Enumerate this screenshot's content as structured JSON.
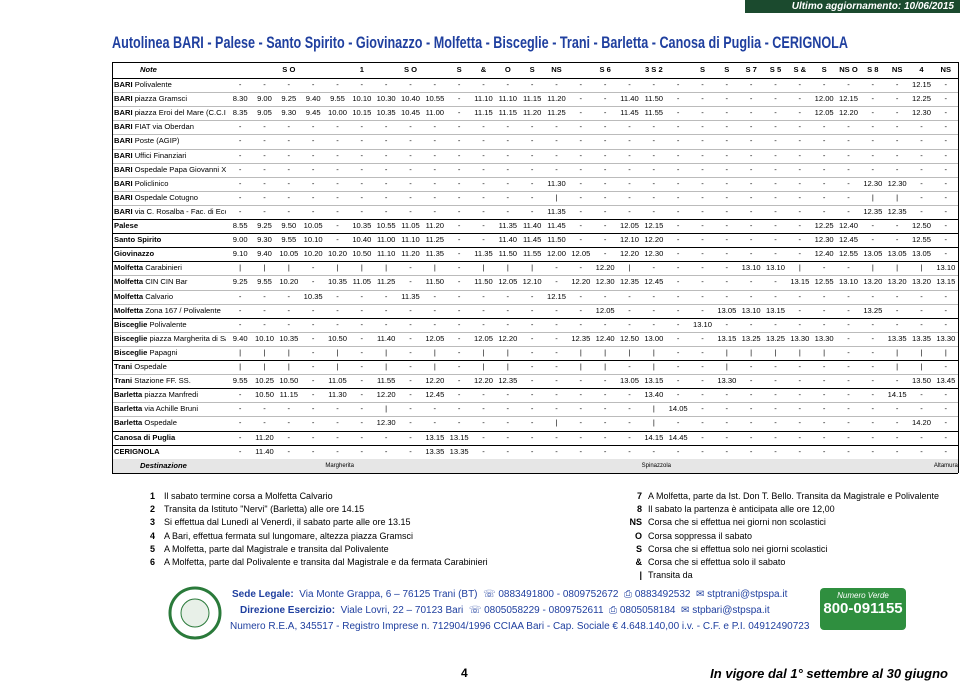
{
  "update": "Ultimo aggiornamento: 10/06/2015",
  "title": "Autolinea BARI - Palese - Santo Spirito - Giovinazzo - Molfetta - Bisceglie - Trani - Barletta - Canosa di Puglia - CERIGNOLA",
  "table": {
    "header_label": "Note",
    "header": [
      null,
      null,
      "S O",
      null,
      null,
      "1",
      null,
      "S O",
      null,
      "S",
      "&",
      "O",
      "S",
      "NS",
      null,
      "S 6",
      null,
      "3 S 2",
      null,
      "S",
      "S",
      "S 7",
      "S 5",
      "S &",
      "S",
      "NS O",
      "S 8",
      "NS",
      "4",
      "NS"
    ],
    "rows": [
      {
        "city": "BARI",
        "place": "Polivalente",
        "cells": [
          "-",
          "-",
          "-",
          "-",
          "-",
          "-",
          "-",
          "-",
          "-",
          "-",
          "-",
          "-",
          "-",
          "-",
          "-",
          "-",
          "-",
          "-",
          "-",
          "-",
          "-",
          "-",
          "-",
          "-",
          "-",
          "-",
          "-",
          "-",
          "12.15",
          "-"
        ]
      },
      {
        "city": "BARI",
        "place": "piazza Gramsci",
        "cells": [
          "8.30",
          "9.00",
          "9.25",
          "9.40",
          "9.55",
          "10.10",
          "10.30",
          "10.40",
          "10.55",
          "-",
          "11.10",
          "11.10",
          "11.15",
          "11.20",
          "-",
          "-",
          "11.40",
          "11.50",
          "-",
          "-",
          "-",
          "-",
          "-",
          "-",
          "12.00",
          "12.15",
          "-",
          "-",
          "12.25",
          "-"
        ]
      },
      {
        "city": "BARI",
        "place": "piazza Eroi del Mare (C.C.I.A.A.)",
        "cells": [
          "8.35",
          "9.05",
          "9.30",
          "9.45",
          "10.00",
          "10.15",
          "10.35",
          "10.45",
          "11.00",
          "-",
          "11.15",
          "11.15",
          "11.20",
          "11.25",
          "-",
          "-",
          "11.45",
          "11.55",
          "-",
          "-",
          "-",
          "-",
          "-",
          "-",
          "12.05",
          "12.20",
          "-",
          "-",
          "12.30",
          "-"
        ]
      },
      {
        "city": "BARI",
        "place": "FIAT via Oberdan",
        "cells": [
          "-",
          "-",
          "-",
          "-",
          "-",
          "-",
          "-",
          "-",
          "-",
          "-",
          "-",
          "-",
          "-",
          "-",
          "-",
          "-",
          "-",
          "-",
          "-",
          "-",
          "-",
          "-",
          "-",
          "-",
          "-",
          "-",
          "-",
          "-",
          "-",
          "-"
        ]
      },
      {
        "city": "BARI",
        "place": "Poste (AGIP)",
        "cells": [
          "-",
          "-",
          "-",
          "-",
          "-",
          "-",
          "-",
          "-",
          "-",
          "-",
          "-",
          "-",
          "-",
          "-",
          "-",
          "-",
          "-",
          "-",
          "-",
          "-",
          "-",
          "-",
          "-",
          "-",
          "-",
          "-",
          "-",
          "-",
          "-",
          "-"
        ]
      },
      {
        "city": "BARI",
        "place": "Uffici Finanziari",
        "cells": [
          "-",
          "-",
          "-",
          "-",
          "-",
          "-",
          "-",
          "-",
          "-",
          "-",
          "-",
          "-",
          "-",
          "-",
          "-",
          "-",
          "-",
          "-",
          "-",
          "-",
          "-",
          "-",
          "-",
          "-",
          "-",
          "-",
          "-",
          "-",
          "-",
          "-"
        ]
      },
      {
        "city": "BARI",
        "place": "Ospedale Papa Giovanni XXIII",
        "cells": [
          "-",
          "-",
          "-",
          "-",
          "-",
          "-",
          "-",
          "-",
          "-",
          "-",
          "-",
          "-",
          "-",
          "-",
          "-",
          "-",
          "-",
          "-",
          "-",
          "-",
          "-",
          "-",
          "-",
          "-",
          "-",
          "-",
          "-",
          "-",
          "-",
          "-"
        ]
      },
      {
        "city": "BARI",
        "place": "Policlinico",
        "cells": [
          "-",
          "-",
          "-",
          "-",
          "-",
          "-",
          "-",
          "-",
          "-",
          "-",
          "-",
          "-",
          "-",
          "11.30",
          "-",
          "-",
          "-",
          "-",
          "-",
          "-",
          "-",
          "-",
          "-",
          "-",
          "-",
          "-",
          "12.30",
          "12.30",
          "-",
          "-"
        ]
      },
      {
        "city": "BARI",
        "place": "Ospedale Cotugno",
        "cells": [
          "-",
          "-",
          "-",
          "-",
          "-",
          "-",
          "-",
          "-",
          "-",
          "-",
          "-",
          "-",
          "-",
          "|",
          "-",
          "-",
          "-",
          "-",
          "-",
          "-",
          "-",
          "-",
          "-",
          "-",
          "-",
          "-",
          "|",
          "|",
          "-",
          "-"
        ]
      },
      {
        "city": "BARI",
        "place": "via C. Rosalba - Fac. di Economia",
        "cells": [
          "-",
          "-",
          "-",
          "-",
          "-",
          "-",
          "-",
          "-",
          "-",
          "-",
          "-",
          "-",
          "-",
          "11.35",
          "-",
          "-",
          "-",
          "-",
          "-",
          "-",
          "-",
          "-",
          "-",
          "-",
          "-",
          "-",
          "12.35",
          "12.35",
          "-",
          "-"
        ]
      },
      {
        "city": "Palese",
        "cells": [
          "8.55",
          "9.25",
          "9.50",
          "10.05",
          "-",
          "10.35",
          "10.55",
          "11.05",
          "11.20",
          "-",
          "-",
          "11.35",
          "11.40",
          "11.45",
          "-",
          "-",
          "12.05",
          "12.15",
          "-",
          "-",
          "-",
          "-",
          "-",
          "-",
          "12.25",
          "12.40",
          "-",
          "-",
          "12.50",
          "-"
        ]
      },
      {
        "city": "Santo Spirito",
        "cells": [
          "9.00",
          "9.30",
          "9.55",
          "10.10",
          "-",
          "10.40",
          "11.00",
          "11.10",
          "11.25",
          "-",
          "-",
          "11.40",
          "11.45",
          "11.50",
          "-",
          "-",
          "12.10",
          "12.20",
          "-",
          "-",
          "-",
          "-",
          "-",
          "-",
          "12.30",
          "12.45",
          "-",
          "-",
          "12.55",
          "-"
        ]
      },
      {
        "city": "Giovinazzo",
        "cells": [
          "9.10",
          "9.40",
          "10.05",
          "10.20",
          "10.20",
          "10.50",
          "11.10",
          "11.20",
          "11.35",
          "-",
          "11.35",
          "11.50",
          "11.55",
          "12.00",
          "12.05",
          "-",
          "12.20",
          "12.30",
          "-",
          "-",
          "-",
          "-",
          "-",
          "-",
          "12.40",
          "12.55",
          "13.05",
          "13.05",
          "13.05",
          "-"
        ]
      },
      {
        "city": "Molfetta",
        "place": "Carabinieri",
        "cells": [
          "|",
          "|",
          "|",
          "-",
          "|",
          "|",
          "|",
          "-",
          "|",
          "-",
          "|",
          "|",
          "|",
          "-",
          "-",
          "12.20",
          "|",
          "-",
          "-",
          "-",
          "-",
          "13.10",
          "13.10",
          "|",
          "-",
          "-",
          "|",
          "|",
          "|",
          "13.10"
        ]
      },
      {
        "city": "Molfetta",
        "place": "CIN CIN Bar",
        "cells": [
          "9.25",
          "9.55",
          "10.20",
          "-",
          "10.35",
          "11.05",
          "11.25",
          "-",
          "11.50",
          "-",
          "11.50",
          "12.05",
          "12.10",
          "-",
          "12.20",
          "12.30",
          "12.35",
          "12.45",
          "-",
          "-",
          "-",
          "-",
          "-",
          "13.15",
          "12.55",
          "13.10",
          "13.20",
          "13.20",
          "13.20",
          "13.15"
        ]
      },
      {
        "city": "Molfetta",
        "place": "Calvario",
        "cells": [
          "-",
          "-",
          "-",
          "10.35",
          "-",
          "-",
          "-",
          "11.35",
          "-",
          "-",
          "-",
          "-",
          "-",
          "12.15",
          "-",
          "-",
          "-",
          "-",
          "-",
          "-",
          "-",
          "-",
          "-",
          "-",
          "-",
          "-",
          "-",
          "-",
          "-",
          "-"
        ]
      },
      {
        "city": "Molfetta",
        "place": "Zona 167 / Polivalente",
        "cells": [
          "-",
          "-",
          "-",
          "-",
          "-",
          "-",
          "-",
          "-",
          "-",
          "-",
          "-",
          "-",
          "-",
          "-",
          "-",
          "12.05",
          "-",
          "-",
          "-",
          "-",
          "13.05",
          "13.10",
          "13.15",
          "-",
          "-",
          "-",
          "13.25",
          "-",
          "-",
          "-"
        ]
      },
      {
        "city": "Bisceglie",
        "place": "Polivalente",
        "cells": [
          "-",
          "-",
          "-",
          "-",
          "-",
          "-",
          "-",
          "-",
          "-",
          "-",
          "-",
          "-",
          "-",
          "-",
          "-",
          "-",
          "-",
          "-",
          "-",
          "13.10",
          "-",
          "-",
          "-",
          "-",
          "-",
          "-",
          "-",
          "-",
          "-",
          "-"
        ]
      },
      {
        "city": "Bisceglie",
        "place": "piazza Margherita di Savoia",
        "cells": [
          "9.40",
          "10.10",
          "10.35",
          "-",
          "10.50",
          "-",
          "11.40",
          "-",
          "12.05",
          "-",
          "12.05",
          "12.20",
          "-",
          "-",
          "12.35",
          "12.40",
          "12.50",
          "13.00",
          "-",
          "-",
          "13.15",
          "13.25",
          "13.25",
          "13.30",
          "13.30",
          "-",
          "-",
          "13.35",
          "13.35",
          "13.30"
        ]
      },
      {
        "city": "Bisceglie",
        "place": "Papagni",
        "cells": [
          "|",
          "|",
          "|",
          "-",
          "|",
          "-",
          "|",
          "-",
          "|",
          "-",
          "|",
          "|",
          "-",
          "-",
          "|",
          "|",
          "|",
          "|",
          "-",
          "-",
          "|",
          "|",
          "|",
          "|",
          "|",
          "-",
          "-",
          "|",
          "|",
          "|"
        ]
      },
      {
        "city": "Trani",
        "place": "Ospedale",
        "cells": [
          "|",
          "|",
          "|",
          "-",
          "|",
          "-",
          "|",
          "-",
          "|",
          "-",
          "|",
          "|",
          "-",
          "-",
          "|",
          "|",
          "-",
          "|",
          "-",
          "-",
          "|",
          "-",
          "-",
          "-",
          "-",
          "-",
          "-",
          "|",
          "|",
          "-"
        ]
      },
      {
        "city": "Trani",
        "place": "Stazione FF. SS.",
        "cells": [
          "9.55",
          "10.25",
          "10.50",
          "-",
          "11.05",
          "-",
          "11.55",
          "-",
          "12.20",
          "-",
          "12.20",
          "12.35",
          "-",
          "-",
          "-",
          "-",
          "13.05",
          "13.15",
          "-",
          "-",
          "13.30",
          "-",
          "-",
          "-",
          "-",
          "-",
          "-",
          "-",
          "13.50",
          "13.45"
        ]
      },
      {
        "city": "Barletta",
        "place": "piazza Manfredi",
        "cells": [
          "-",
          "10.50",
          "11.15",
          "-",
          "11.30",
          "-",
          "12.20",
          "-",
          "12.45",
          "-",
          "-",
          "-",
          "-",
          "-",
          "-",
          "-",
          "-",
          "13.40",
          "-",
          "-",
          "-",
          "-",
          "-",
          "-",
          "-",
          "-",
          "-",
          "14.15",
          "-",
          "-"
        ]
      },
      {
        "city": "Barletta",
        "place": "via Achille Bruni",
        "cells": [
          "-",
          "-",
          "-",
          "-",
          "-",
          "-",
          "|",
          "-",
          "-",
          "-",
          "-",
          "-",
          "-",
          "-",
          "-",
          "-",
          "-",
          "|",
          "14.05",
          "-",
          "-",
          "-",
          "-",
          "-",
          "-",
          "-",
          "-",
          "-",
          "-",
          "-"
        ]
      },
      {
        "city": "Barletta",
        "place": "Ospedale",
        "cells": [
          "-",
          "-",
          "-",
          "-",
          "-",
          "-",
          "12.30",
          "-",
          "-",
          "-",
          "-",
          "-",
          "-",
          "|",
          "-",
          "-",
          "-",
          "|",
          "-",
          "-",
          "-",
          "-",
          "-",
          "-",
          "-",
          "-",
          "-",
          "-",
          "14.20",
          "-"
        ]
      },
      {
        "city": "Canosa di Puglia",
        "cells": [
          "-",
          "11.20",
          "-",
          "-",
          "-",
          "-",
          "-",
          "-",
          "13.15",
          "13.15",
          "-",
          "-",
          "-",
          "-",
          "-",
          "-",
          "-",
          "14.15",
          "14.45",
          "-",
          "-",
          "-",
          "-",
          "-",
          "-",
          "-",
          "-",
          "-",
          "-",
          "-"
        ]
      },
      {
        "city": "CERIGNOLA",
        "cells": [
          "-",
          "11.40",
          "-",
          "-",
          "-",
          "-",
          "-",
          "-",
          "13.35",
          "13.35",
          "-",
          "-",
          "-",
          "-",
          "-",
          "-",
          "-",
          "-",
          "-",
          "-",
          "-",
          "-",
          "-",
          "-",
          "-",
          "-",
          "-",
          "-",
          "-",
          "-"
        ]
      }
    ],
    "destination_label": "Destinazione",
    "destination": [
      null,
      null,
      null,
      null,
      "Margherita",
      null,
      null,
      null,
      null,
      null,
      null,
      null,
      null,
      null,
      null,
      null,
      null,
      "Spinazzola",
      null,
      null,
      null,
      null,
      null,
      null,
      null,
      null,
      null,
      null,
      null,
      "Altamura"
    ]
  },
  "notes_left": [
    {
      "key": "1",
      "text": "Il sabato termine corsa a Molfetta Calvario"
    },
    {
      "key": "2",
      "text": "Transita da Istituto \"Nervi\" (Barletta) alle ore 14.15"
    },
    {
      "key": "3",
      "text": "Si effettua dal Lunedì al Venerdì, il sabato parte alle ore 13.15"
    },
    {
      "key": "4",
      "text": "A Bari, effettua fermata sul lungomare, altezza piazza Gramsci"
    },
    {
      "key": "5",
      "text": "A Molfetta, parte dal Magistrale e transita dal Polivalente"
    },
    {
      "key": "6",
      "text": "A Molfetta, parte dal Polivalente e transita dal Magistrale e da fermata Carabinieri"
    }
  ],
  "notes_right": [
    {
      "key": "7",
      "text": "A Molfetta, parte da Ist. Don T. Bello. Transita da Magistrale e Polivalente"
    },
    {
      "key": "8",
      "text": "Il sabato la partenza è anticipata alle ore 12,00"
    },
    {
      "key": "NS",
      "text": "Corsa che si effettua nei giorni non scolastici"
    },
    {
      "key": "O",
      "text": "Corsa soppressa il sabato"
    },
    {
      "key": "S",
      "text": "Corsa che si effettua solo nei giorni scolastici"
    },
    {
      "key": "&",
      "text": "Corsa che si effettua solo il sabato"
    },
    {
      "key": "|",
      "text": "Transita da"
    }
  ],
  "contacts": {
    "legal": {
      "label": "Sede Legale:",
      "address": "Via Monte Grappa, 6 – 76125 Trani (BT)",
      "phone": "0883491800 - 0809752672",
      "fax": "0883492532",
      "email": "stptrani@stpspa.it"
    },
    "office": {
      "label": "Direzione Esercizio:",
      "address": "Viale Lovri, 22 – 70123 Bari",
      "phone": "0805058229 - 0809752611",
      "fax": "0805058184",
      "email": "stpbari@stpspa.it"
    },
    "registry": "Numero R.E.A, 345517 - Registro Imprese n. 712904/1996 CCIAA Bari - Cap. Sociale € 4.648.140,00 i.v. - C.F. e P.I. 04912490723"
  },
  "toll_free": {
    "label": "Numero Verde",
    "number": "800-091155"
  },
  "footer": {
    "page": "4",
    "validity": "In vigore dal 1° settembre al 30 giugno"
  }
}
